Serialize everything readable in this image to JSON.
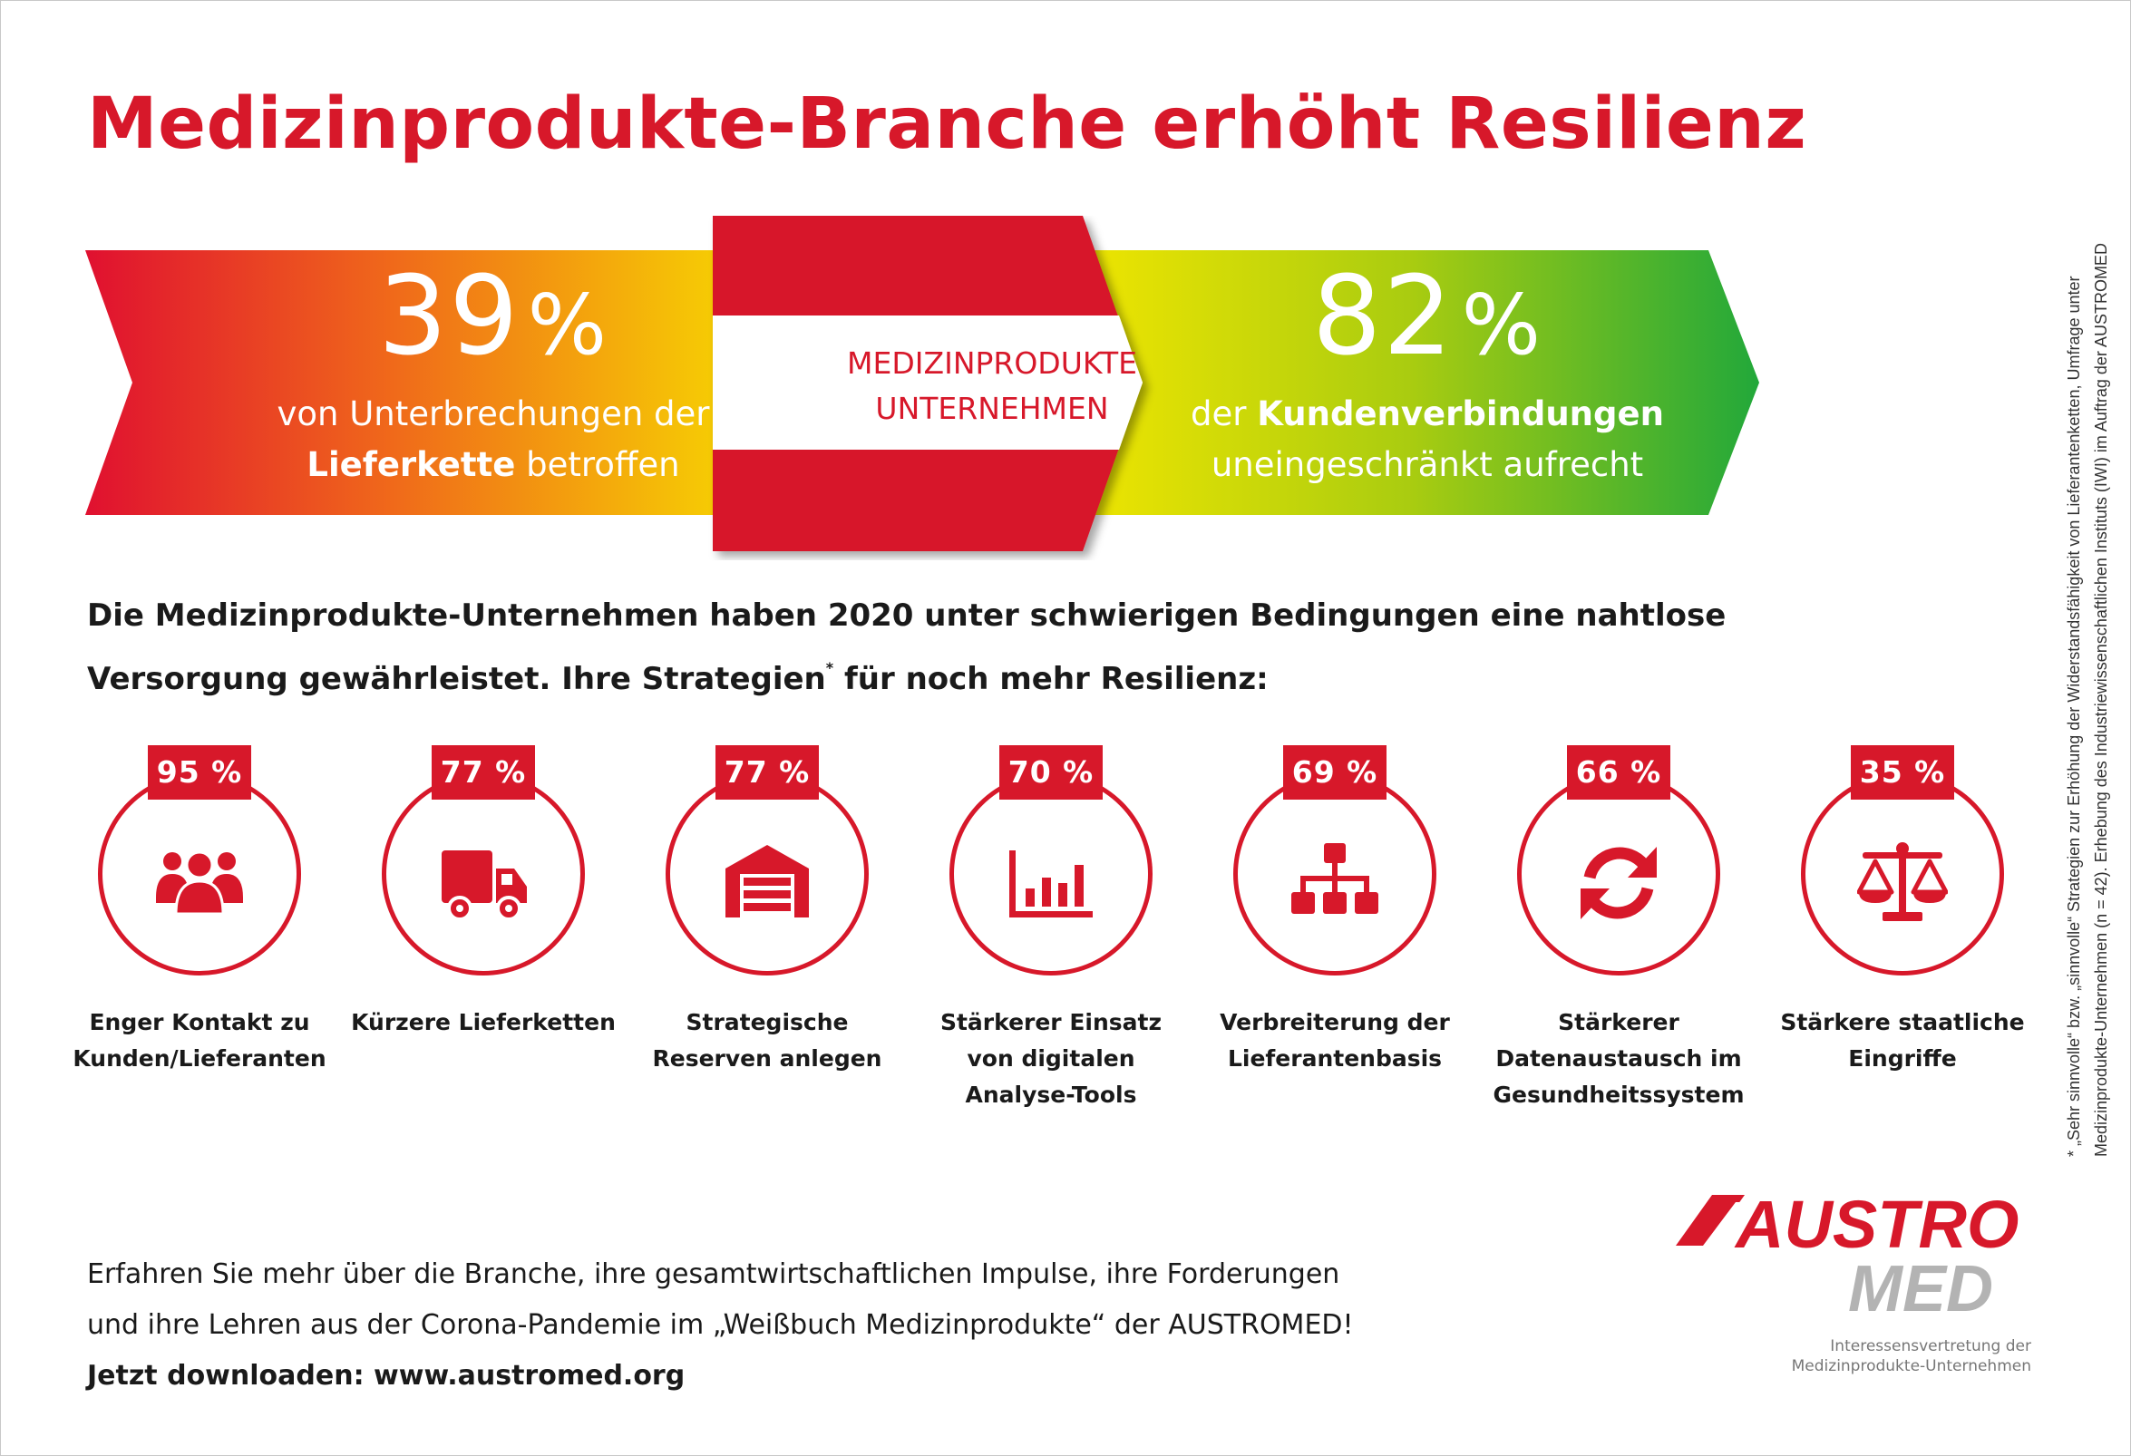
{
  "title": "Medizinprodukte-Branche erhöht Resilienz",
  "banner": {
    "left": {
      "number": "39",
      "pct": "%",
      "line1": "von Unterbrechungen der",
      "line2_bold": "Lieferkette",
      "line2_rest": " betroffen"
    },
    "center": {
      "line1": "MEDIZINPRODUKTE",
      "line2": "UNTERNEHMEN"
    },
    "right": {
      "number": "82",
      "pct": "%",
      "line1_pre": "der ",
      "line1_bold": "Kundenverbindungen",
      "line2": "uneingeschränkt aufrecht"
    }
  },
  "intro": {
    "line1": "Die Medizinprodukte-Unternehmen haben 2020 unter schwierigen Bedingungen eine nahtlose",
    "line2_a": "Versorgung gewährleistet. Ihre Strategien",
    "line2_star": "*",
    "line2_b": " für noch mehr Resilienz:"
  },
  "strategies": [
    {
      "percent": "95 %",
      "icon": "users-icon",
      "label": "Enger Kontakt zu Kunden/Lieferanten"
    },
    {
      "percent": "77 %",
      "icon": "truck-icon",
      "label": "Kürzere Lieferketten"
    },
    {
      "percent": "77 %",
      "icon": "warehouse-icon",
      "label": "Strategische Reserven anlegen"
    },
    {
      "percent": "70 %",
      "icon": "bar-chart-icon",
      "label": "Stärkerer Einsatz von digitalen Analyse-Tools"
    },
    {
      "percent": "69 %",
      "icon": "sitemap-icon",
      "label": "Verbreiterung der Lieferantenbasis"
    },
    {
      "percent": "66 %",
      "icon": "sync-icon",
      "label": "Stärkerer Datenaustausch im Gesundheitssystem"
    },
    {
      "percent": "35 %",
      "icon": "scale-icon",
      "label": "Stärkere staatliche Eingriffe"
    }
  ],
  "cta": {
    "line1": "Erfahren Sie mehr über die Branche, ihre gesamtwirtschaftlichen Impulse, ihre Forderungen",
    "line2": "und ihre Lehren aus der Corona-Pandemie im „Weißbuch Medizinprodukte“ der AUSTROMED!",
    "line3": "Jetzt downloaden: www.austromed.org"
  },
  "logo": {
    "word1": "AUSTRO",
    "word2": "MED",
    "tagline1": "Interessensvertretung der",
    "tagline2": "Medizinprodukte-Unternehmen"
  },
  "footnote": {
    "line1": "*  „Sehr sinnvolle“ bzw. „sinnvolle“ Strategien zur Erhöhung der Widerstandsfähigkeit von Lieferantenketten, Umfrage unter",
    "line2": "Medizinprodukte-Unternehmen (n = 42). Erhebung des Industriewissenschaftlichen Instituts (IWI) im Auftrag der AUSTROMED"
  },
  "colors": {
    "brand_red": "#d7182a",
    "gradient_left": [
      "#e01030",
      "#f7dd00"
    ],
    "gradient_right": [
      "#eeea00",
      "#22a83a"
    ],
    "logo_grey": "#b3b3b3"
  }
}
